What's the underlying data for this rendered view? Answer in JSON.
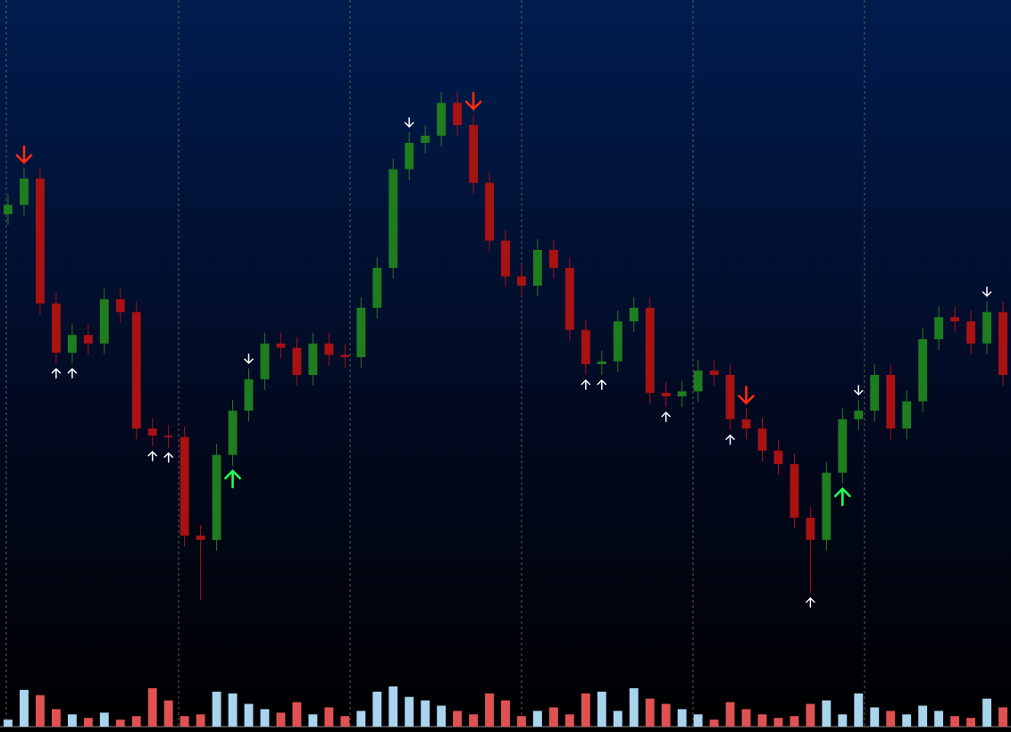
{
  "chart_data": {
    "type": "candlestick",
    "categories": [
      null,
      null,
      null,
      null,
      null,
      null,
      null,
      null,
      null,
      null,
      null,
      null,
      null,
      null,
      null,
      null,
      null,
      null,
      null,
      null,
      null,
      null,
      null,
      null,
      null,
      null,
      null,
      null,
      null,
      null,
      null,
      null,
      null,
      null,
      null,
      null,
      null,
      null,
      null,
      null,
      null,
      null,
      null,
      null,
      null,
      null,
      null,
      null,
      null,
      null,
      null,
      null,
      null,
      null,
      null,
      null,
      null,
      null,
      null,
      null,
      null,
      null,
      null
    ],
    "open": [
      70,
      71.3,
      75,
      57.5,
      50.6,
      53.1,
      51.9,
      58.1,
      56.3,
      40,
      39,
      38.8,
      25,
      24.4,
      36.3,
      42.5,
      46.9,
      51.9,
      51.3,
      47.5,
      51.9,
      50.3,
      50,
      56.9,
      62.5,
      76.3,
      80,
      81,
      85.6,
      82.5,
      74.4,
      66.3,
      61.3,
      60,
      65,
      62.5,
      53.8,
      49,
      49.4,
      55,
      56.9,
      45,
      44.5,
      45.2,
      48.1,
      47.5,
      41.3,
      40,
      36.9,
      35,
      27.5,
      24.4,
      33.8,
      41.3,
      42.5,
      47.5,
      40,
      43.8,
      52.5,
      55.6,
      55,
      51.9,
      56.3
    ],
    "high": [
      72.8,
      76.5,
      76.5,
      59,
      54.6,
      54.6,
      59.6,
      59.6,
      57.8,
      41.5,
      40.5,
      40.3,
      26.5,
      37.8,
      44,
      48.4,
      53.4,
      53.4,
      52.8,
      53.4,
      53.4,
      51.8,
      58.4,
      64,
      77.8,
      81.5,
      82.5,
      87.1,
      87.1,
      84,
      75.9,
      67.8,
      62.8,
      66.5,
      66.5,
      64,
      55.3,
      50.9,
      56.5,
      58.4,
      58.4,
      46.5,
      46.7,
      49.6,
      49.6,
      49,
      42.8,
      41.5,
      38.4,
      36.5,
      29,
      35.3,
      42.8,
      44,
      49,
      49,
      45.3,
      54,
      57.1,
      57.1,
      56.5,
      57.8,
      57.8
    ],
    "low": [
      68.5,
      69.8,
      56,
      49.1,
      49.1,
      50.4,
      50.4,
      54.8,
      38.5,
      37.5,
      37.3,
      23.5,
      16,
      22.9,
      34.8,
      41,
      45.4,
      49.8,
      46,
      46,
      48.8,
      48.5,
      48.5,
      55.4,
      61,
      74.8,
      78.5,
      79.5,
      81,
      72.9,
      64.8,
      59.8,
      58.5,
      58.5,
      61,
      52.3,
      47.5,
      47.5,
      47.9,
      53.5,
      43.5,
      43,
      43,
      43.7,
      46,
      39.8,
      38.5,
      35.4,
      33.5,
      26,
      17,
      22.9,
      32.3,
      39.8,
      41,
      38.5,
      38.5,
      42.3,
      51,
      53.5,
      50.4,
      50.4,
      46
    ],
    "close": [
      71.3,
      75,
      57.5,
      50.6,
      53.1,
      51.9,
      58.1,
      56.3,
      40,
      39,
      38.8,
      25,
      24.4,
      36.3,
      42.5,
      46.9,
      51.9,
      51.3,
      47.5,
      51.9,
      50.3,
      50,
      56.9,
      62.5,
      76.3,
      80,
      81,
      85.6,
      82.5,
      74.4,
      66.3,
      61.3,
      60,
      65,
      62.5,
      53.8,
      49,
      49.4,
      55,
      56.9,
      45,
      44.5,
      45.2,
      48.1,
      47.5,
      41.3,
      40,
      36.9,
      35,
      27.5,
      24.4,
      33.8,
      41.3,
      42.5,
      47.5,
      40,
      43.8,
      52.5,
      55.6,
      55,
      51.9,
      56.3,
      47.5
    ],
    "volume": [
      8,
      42,
      36,
      20,
      14,
      10,
      16,
      8,
      12,
      44,
      30,
      12,
      14,
      40,
      38,
      26,
      20,
      16,
      28,
      14,
      22,
      12,
      18,
      40,
      46,
      34,
      30,
      24,
      18,
      14,
      38,
      30,
      12,
      18,
      22,
      14,
      38,
      40,
      18,
      44,
      32,
      26,
      20,
      14,
      8,
      28,
      20,
      14,
      10,
      12,
      26,
      30,
      14,
      38,
      22,
      18,
      14,
      24,
      18,
      12,
      10,
      32,
      22
    ],
    "ylim": [
      5,
      100
    ],
    "volume_ylim": [
      0,
      50
    ],
    "up_color": "#1f7d1f",
    "down_color": "#a81212",
    "volume_up_color": "#a9d4ee",
    "volume_down_color": "#e05252",
    "sell_signals": [
      1,
      29,
      46
    ],
    "buy_signals": [
      14,
      52
    ],
    "minor_sell_signals": [
      15,
      25,
      53,
      61
    ],
    "minor_buy_signals": [
      3,
      4,
      9,
      10,
      36,
      37,
      41,
      45,
      50
    ],
    "sell_color": "#ff2a10",
    "buy_color": "#22ff55",
    "minor_color": "#ffffff"
  }
}
